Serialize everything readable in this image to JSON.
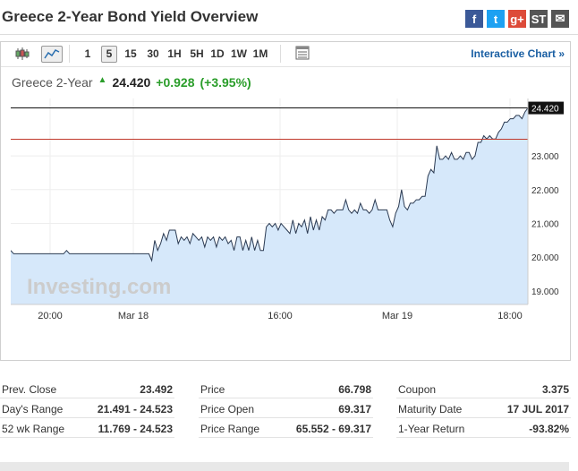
{
  "title": "Greece 2-Year Bond Yield Overview",
  "social": [
    {
      "name": "facebook-icon",
      "glyph": "f",
      "color": "#3b5998"
    },
    {
      "name": "twitter-icon",
      "glyph": "t",
      "color": "#1da1f2"
    },
    {
      "name": "google-plus-icon",
      "glyph": "g+",
      "color": "#dd4b39"
    },
    {
      "name": "stocktwits-icon",
      "glyph": "ST",
      "color": "#555"
    },
    {
      "name": "email-icon",
      "glyph": "✉",
      "color": "#555"
    }
  ],
  "toolbar": {
    "intervals": [
      "1",
      "5",
      "15",
      "30",
      "1H",
      "5H",
      "1D",
      "1W",
      "1M"
    ],
    "active_interval": "5",
    "interactive_label": "Interactive Chart »"
  },
  "quote": {
    "name": "Greece 2-Year",
    "last": "24.420",
    "change": "+0.928",
    "change_pct": "(+3.95%)"
  },
  "chart_data": {
    "type": "area",
    "x_ticks": [
      "20:00",
      "Mar 18",
      "16:00",
      "Mar 19",
      "18:00"
    ],
    "y_ticks": [
      "19.000",
      "20.000",
      "21.000",
      "22.000",
      "23.000"
    ],
    "ylim": [
      18.6,
      24.7
    ],
    "last_label": "24.420",
    "prev_close": 23.492,
    "watermark": "Investing.com",
    "values": [
      20.2,
      20.1,
      20.1,
      20.1,
      20.1,
      20.1,
      20.1,
      20.1,
      20.1,
      20.1,
      20.1,
      20.1,
      20.1,
      20.1,
      20.1,
      20.1,
      20.1,
      20.1,
      20.1,
      20.2,
      20.1,
      20.1,
      20.1,
      20.1,
      20.1,
      20.1,
      20.1,
      20.1,
      20.1,
      20.1,
      20.1,
      20.1,
      20.1,
      20.1,
      20.1,
      20.1,
      20.1,
      20.1,
      20.1,
      20.1,
      20.1,
      20.1,
      20.1,
      20.1,
      20.1,
      20.1,
      20.1,
      20.1,
      19.9,
      20.5,
      20.2,
      20.4,
      20.7,
      20.5,
      20.8,
      20.8,
      20.8,
      20.4,
      20.6,
      20.5,
      20.6,
      20.4,
      20.7,
      20.6,
      20.5,
      20.6,
      20.3,
      20.6,
      20.5,
      20.6,
      20.3,
      20.6,
      20.5,
      20.6,
      20.4,
      20.5,
      20.2,
      20.6,
      20.6,
      20.2,
      20.5,
      20.2,
      20.6,
      20.2,
      20.5,
      20.2,
      20.2,
      20.9,
      21.0,
      20.9,
      21.0,
      20.8,
      21.0,
      20.9,
      20.8,
      20.7,
      21.1,
      20.7,
      21.0,
      20.9,
      21.1,
      20.7,
      21.2,
      20.8,
      21.1,
      20.8,
      21.2,
      21.1,
      21.4,
      21.4,
      21.3,
      21.4,
      21.4,
      21.4,
      21.7,
      21.4,
      21.3,
      21.4,
      21.3,
      21.6,
      21.4,
      21.4,
      21.3,
      21.4,
      21.7,
      21.4,
      21.4,
      21.4,
      21.4,
      21.1,
      20.9,
      21.3,
      21.5,
      22.0,
      21.5,
      21.4,
      21.6,
      21.6,
      21.7,
      21.7,
      21.8,
      21.8,
      22.4,
      22.6,
      22.5,
      23.3,
      22.9,
      22.9,
      23.0,
      22.9,
      23.1,
      22.9,
      22.9,
      23.0,
      22.9,
      23.1,
      23.1,
      22.9,
      23.0,
      23.4,
      23.4,
      23.6,
      23.5,
      23.6,
      23.5,
      23.5,
      23.7,
      23.8,
      24.0,
      24.0,
      24.1,
      24.1,
      24.2,
      24.2,
      24.1,
      24.3,
      24.42
    ]
  },
  "stats": [
    [
      {
        "label": "Prev. Close",
        "value": "23.492"
      },
      {
        "label": "Day's Range",
        "value": "21.491 - 24.523"
      },
      {
        "label": "52 wk Range",
        "value": "11.769 - 24.523"
      }
    ],
    [
      {
        "label": "Price",
        "value": "66.798"
      },
      {
        "label": "Price Open",
        "value": "69.317"
      },
      {
        "label": "Price Range",
        "value": "65.552 - 69.317"
      }
    ],
    [
      {
        "label": "Coupon",
        "value": "3.375"
      },
      {
        "label": "Maturity Date",
        "value": "17 JUL 2017"
      },
      {
        "label": "1-Year Return",
        "value": "-93.82%"
      }
    ]
  ]
}
